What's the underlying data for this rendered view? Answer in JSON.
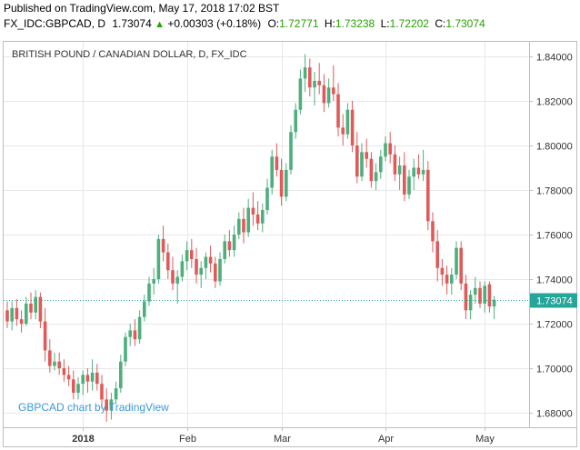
{
  "header": {
    "published": "Published on TradingView.com, May 17, 2018 17:02 BST",
    "symbol": "FX_IDC:GBPCAD, D",
    "price": "1.73074",
    "arrow": "▲",
    "change": "+0.00303 (+0.18%)",
    "o_label": "O:",
    "o_value": "1.72771",
    "h_label": "H:",
    "h_value": "1.73238",
    "l_label": "L:",
    "l_value": "1.72202",
    "c_label": "C:",
    "c_value": "1.73074"
  },
  "attribution": "GBPCAD chart by TradingView",
  "colors": {
    "up": "#4caf7d",
    "down": "#e05a5a",
    "last_price": "#26a69a",
    "grid": "#e8e8e8",
    "axis": "#bdbdbd"
  },
  "chart_data": {
    "type": "candlestick",
    "title": "BRITISH POUND / CANADIAN DOLLAR, D, FX_IDC",
    "y_ticks": [
      "1.84000",
      "1.82000",
      "1.80000",
      "1.78000",
      "1.76000",
      "1.74000",
      "1.72000",
      "1.70000",
      "1.68000"
    ],
    "y_tick_values": [
      1.84,
      1.82,
      1.8,
      1.78,
      1.76,
      1.74,
      1.72,
      1.7,
      1.68
    ],
    "ylim": [
      1.6735,
      1.8465
    ],
    "x_ticks": [
      {
        "label": "2018",
        "index": 16,
        "bold": true
      },
      {
        "label": "Feb",
        "index": 38,
        "bold": false
      },
      {
        "label": "Mar",
        "index": 58,
        "bold": false
      },
      {
        "label": "Apr",
        "index": 80,
        "bold": false
      },
      {
        "label": "May",
        "index": 101,
        "bold": false
      }
    ],
    "x_range": [
      0,
      114
    ],
    "last_price": 1.73074,
    "last_price_label": "1.73074",
    "grid": true,
    "candles": [
      {
        "o": 1.726,
        "h": 1.73,
        "l": 1.718,
        "c": 1.721
      },
      {
        "o": 1.721,
        "h": 1.73,
        "l": 1.717,
        "c": 1.727
      },
      {
        "o": 1.727,
        "h": 1.731,
        "l": 1.719,
        "c": 1.722
      },
      {
        "o": 1.722,
        "h": 1.726,
        "l": 1.716,
        "c": 1.72
      },
      {
        "o": 1.72,
        "h": 1.732,
        "l": 1.719,
        "c": 1.729
      },
      {
        "o": 1.729,
        "h": 1.734,
        "l": 1.722,
        "c": 1.725
      },
      {
        "o": 1.725,
        "h": 1.735,
        "l": 1.722,
        "c": 1.732
      },
      {
        "o": 1.732,
        "h": 1.734,
        "l": 1.718,
        "c": 1.721
      },
      {
        "o": 1.721,
        "h": 1.727,
        "l": 1.703,
        "c": 1.708
      },
      {
        "o": 1.708,
        "h": 1.713,
        "l": 1.698,
        "c": 1.701
      },
      {
        "o": 1.701,
        "h": 1.707,
        "l": 1.699,
        "c": 1.703
      },
      {
        "o": 1.703,
        "h": 1.707,
        "l": 1.697,
        "c": 1.7
      },
      {
        "o": 1.7,
        "h": 1.704,
        "l": 1.694,
        "c": 1.697
      },
      {
        "o": 1.697,
        "h": 1.701,
        "l": 1.692,
        "c": 1.695
      },
      {
        "o": 1.695,
        "h": 1.699,
        "l": 1.686,
        "c": 1.689
      },
      {
        "o": 1.689,
        "h": 1.696,
        "l": 1.686,
        "c": 1.693
      },
      {
        "o": 1.693,
        "h": 1.699,
        "l": 1.688,
        "c": 1.697
      },
      {
        "o": 1.697,
        "h": 1.7,
        "l": 1.689,
        "c": 1.694
      },
      {
        "o": 1.694,
        "h": 1.704,
        "l": 1.69,
        "c": 1.698
      },
      {
        "o": 1.698,
        "h": 1.702,
        "l": 1.69,
        "c": 1.693
      },
      {
        "o": 1.693,
        "h": 1.697,
        "l": 1.682,
        "c": 1.686
      },
      {
        "o": 1.686,
        "h": 1.691,
        "l": 1.676,
        "c": 1.681
      },
      {
        "o": 1.681,
        "h": 1.689,
        "l": 1.677,
        "c": 1.686
      },
      {
        "o": 1.686,
        "h": 1.694,
        "l": 1.684,
        "c": 1.691
      },
      {
        "o": 1.691,
        "h": 1.706,
        "l": 1.689,
        "c": 1.703
      },
      {
        "o": 1.703,
        "h": 1.716,
        "l": 1.701,
        "c": 1.714
      },
      {
        "o": 1.714,
        "h": 1.72,
        "l": 1.71,
        "c": 1.717
      },
      {
        "o": 1.717,
        "h": 1.722,
        "l": 1.71,
        "c": 1.713
      },
      {
        "o": 1.713,
        "h": 1.726,
        "l": 1.711,
        "c": 1.723
      },
      {
        "o": 1.723,
        "h": 1.733,
        "l": 1.721,
        "c": 1.73
      },
      {
        "o": 1.73,
        "h": 1.741,
        "l": 1.728,
        "c": 1.738
      },
      {
        "o": 1.738,
        "h": 1.745,
        "l": 1.733,
        "c": 1.74
      },
      {
        "o": 1.74,
        "h": 1.76,
        "l": 1.738,
        "c": 1.758
      },
      {
        "o": 1.758,
        "h": 1.764,
        "l": 1.748,
        "c": 1.752
      },
      {
        "o": 1.752,
        "h": 1.756,
        "l": 1.74,
        "c": 1.744
      },
      {
        "o": 1.744,
        "h": 1.75,
        "l": 1.735,
        "c": 1.738
      },
      {
        "o": 1.738,
        "h": 1.744,
        "l": 1.729,
        "c": 1.741
      },
      {
        "o": 1.741,
        "h": 1.751,
        "l": 1.739,
        "c": 1.748
      },
      {
        "o": 1.748,
        "h": 1.757,
        "l": 1.744,
        "c": 1.753
      },
      {
        "o": 1.753,
        "h": 1.758,
        "l": 1.745,
        "c": 1.749
      },
      {
        "o": 1.749,
        "h": 1.754,
        "l": 1.738,
        "c": 1.742
      },
      {
        "o": 1.742,
        "h": 1.748,
        "l": 1.736,
        "c": 1.745
      },
      {
        "o": 1.745,
        "h": 1.752,
        "l": 1.74,
        "c": 1.75
      },
      {
        "o": 1.75,
        "h": 1.755,
        "l": 1.743,
        "c": 1.747
      },
      {
        "o": 1.747,
        "h": 1.75,
        "l": 1.736,
        "c": 1.739
      },
      {
        "o": 1.739,
        "h": 1.752,
        "l": 1.737,
        "c": 1.749
      },
      {
        "o": 1.749,
        "h": 1.76,
        "l": 1.747,
        "c": 1.757
      },
      {
        "o": 1.757,
        "h": 1.762,
        "l": 1.75,
        "c": 1.753
      },
      {
        "o": 1.753,
        "h": 1.764,
        "l": 1.75,
        "c": 1.76
      },
      {
        "o": 1.76,
        "h": 1.77,
        "l": 1.758,
        "c": 1.767
      },
      {
        "o": 1.767,
        "h": 1.772,
        "l": 1.756,
        "c": 1.761
      },
      {
        "o": 1.761,
        "h": 1.776,
        "l": 1.759,
        "c": 1.772
      },
      {
        "o": 1.772,
        "h": 1.779,
        "l": 1.764,
        "c": 1.769
      },
      {
        "o": 1.769,
        "h": 1.775,
        "l": 1.762,
        "c": 1.765
      },
      {
        "o": 1.765,
        "h": 1.774,
        "l": 1.761,
        "c": 1.771
      },
      {
        "o": 1.771,
        "h": 1.785,
        "l": 1.769,
        "c": 1.781
      },
      {
        "o": 1.781,
        "h": 1.798,
        "l": 1.778,
        "c": 1.795
      },
      {
        "o": 1.795,
        "h": 1.801,
        "l": 1.786,
        "c": 1.789
      },
      {
        "o": 1.789,
        "h": 1.794,
        "l": 1.773,
        "c": 1.777
      },
      {
        "o": 1.777,
        "h": 1.792,
        "l": 1.775,
        "c": 1.789
      },
      {
        "o": 1.789,
        "h": 1.809,
        "l": 1.787,
        "c": 1.806
      },
      {
        "o": 1.806,
        "h": 1.819,
        "l": 1.803,
        "c": 1.816
      },
      {
        "o": 1.816,
        "h": 1.834,
        "l": 1.814,
        "c": 1.83
      },
      {
        "o": 1.83,
        "h": 1.841,
        "l": 1.824,
        "c": 1.835
      },
      {
        "o": 1.835,
        "h": 1.839,
        "l": 1.822,
        "c": 1.826
      },
      {
        "o": 1.826,
        "h": 1.833,
        "l": 1.818,
        "c": 1.829
      },
      {
        "o": 1.829,
        "h": 1.837,
        "l": 1.823,
        "c": 1.827
      },
      {
        "o": 1.827,
        "h": 1.832,
        "l": 1.815,
        "c": 1.819
      },
      {
        "o": 1.819,
        "h": 1.83,
        "l": 1.817,
        "c": 1.826
      },
      {
        "o": 1.826,
        "h": 1.836,
        "l": 1.82,
        "c": 1.823
      },
      {
        "o": 1.823,
        "h": 1.828,
        "l": 1.804,
        "c": 1.808
      },
      {
        "o": 1.808,
        "h": 1.814,
        "l": 1.8,
        "c": 1.805
      },
      {
        "o": 1.805,
        "h": 1.819,
        "l": 1.803,
        "c": 1.816
      },
      {
        "o": 1.816,
        "h": 1.82,
        "l": 1.797,
        "c": 1.8
      },
      {
        "o": 1.8,
        "h": 1.806,
        "l": 1.783,
        "c": 1.786
      },
      {
        "o": 1.786,
        "h": 1.801,
        "l": 1.784,
        "c": 1.797
      },
      {
        "o": 1.797,
        "h": 1.803,
        "l": 1.79,
        "c": 1.794
      },
      {
        "o": 1.794,
        "h": 1.797,
        "l": 1.781,
        "c": 1.784
      },
      {
        "o": 1.784,
        "h": 1.792,
        "l": 1.78,
        "c": 1.788
      },
      {
        "o": 1.788,
        "h": 1.798,
        "l": 1.785,
        "c": 1.795
      },
      {
        "o": 1.795,
        "h": 1.804,
        "l": 1.793,
        "c": 1.801
      },
      {
        "o": 1.801,
        "h": 1.806,
        "l": 1.792,
        "c": 1.796
      },
      {
        "o": 1.796,
        "h": 1.8,
        "l": 1.784,
        "c": 1.787
      },
      {
        "o": 1.787,
        "h": 1.795,
        "l": 1.78,
        "c": 1.791
      },
      {
        "o": 1.791,
        "h": 1.797,
        "l": 1.775,
        "c": 1.778
      },
      {
        "o": 1.778,
        "h": 1.789,
        "l": 1.776,
        "c": 1.786
      },
      {
        "o": 1.786,
        "h": 1.794,
        "l": 1.78,
        "c": 1.79
      },
      {
        "o": 1.79,
        "h": 1.796,
        "l": 1.785,
        "c": 1.787
      },
      {
        "o": 1.787,
        "h": 1.798,
        "l": 1.784,
        "c": 1.789
      },
      {
        "o": 1.789,
        "h": 1.793,
        "l": 1.762,
        "c": 1.766
      },
      {
        "o": 1.766,
        "h": 1.77,
        "l": 1.752,
        "c": 1.757
      },
      {
        "o": 1.757,
        "h": 1.762,
        "l": 1.739,
        "c": 1.745
      },
      {
        "o": 1.745,
        "h": 1.749,
        "l": 1.737,
        "c": 1.742
      },
      {
        "o": 1.742,
        "h": 1.746,
        "l": 1.733,
        "c": 1.738
      },
      {
        "o": 1.738,
        "h": 1.745,
        "l": 1.733,
        "c": 1.742
      },
      {
        "o": 1.742,
        "h": 1.757,
        "l": 1.74,
        "c": 1.754
      },
      {
        "o": 1.754,
        "h": 1.757,
        "l": 1.735,
        "c": 1.738
      },
      {
        "o": 1.738,
        "h": 1.742,
        "l": 1.722,
        "c": 1.726
      },
      {
        "o": 1.726,
        "h": 1.735,
        "l": 1.722,
        "c": 1.733
      },
      {
        "o": 1.733,
        "h": 1.741,
        "l": 1.729,
        "c": 1.736
      },
      {
        "o": 1.736,
        "h": 1.739,
        "l": 1.727,
        "c": 1.729
      },
      {
        "o": 1.729,
        "h": 1.739,
        "l": 1.725,
        "c": 1.737
      },
      {
        "o": 1.7377,
        "h": 1.739,
        "l": 1.725,
        "c": 1.7277
      },
      {
        "o": 1.72771,
        "h": 1.73238,
        "l": 1.72202,
        "c": 1.73074
      }
    ]
  }
}
